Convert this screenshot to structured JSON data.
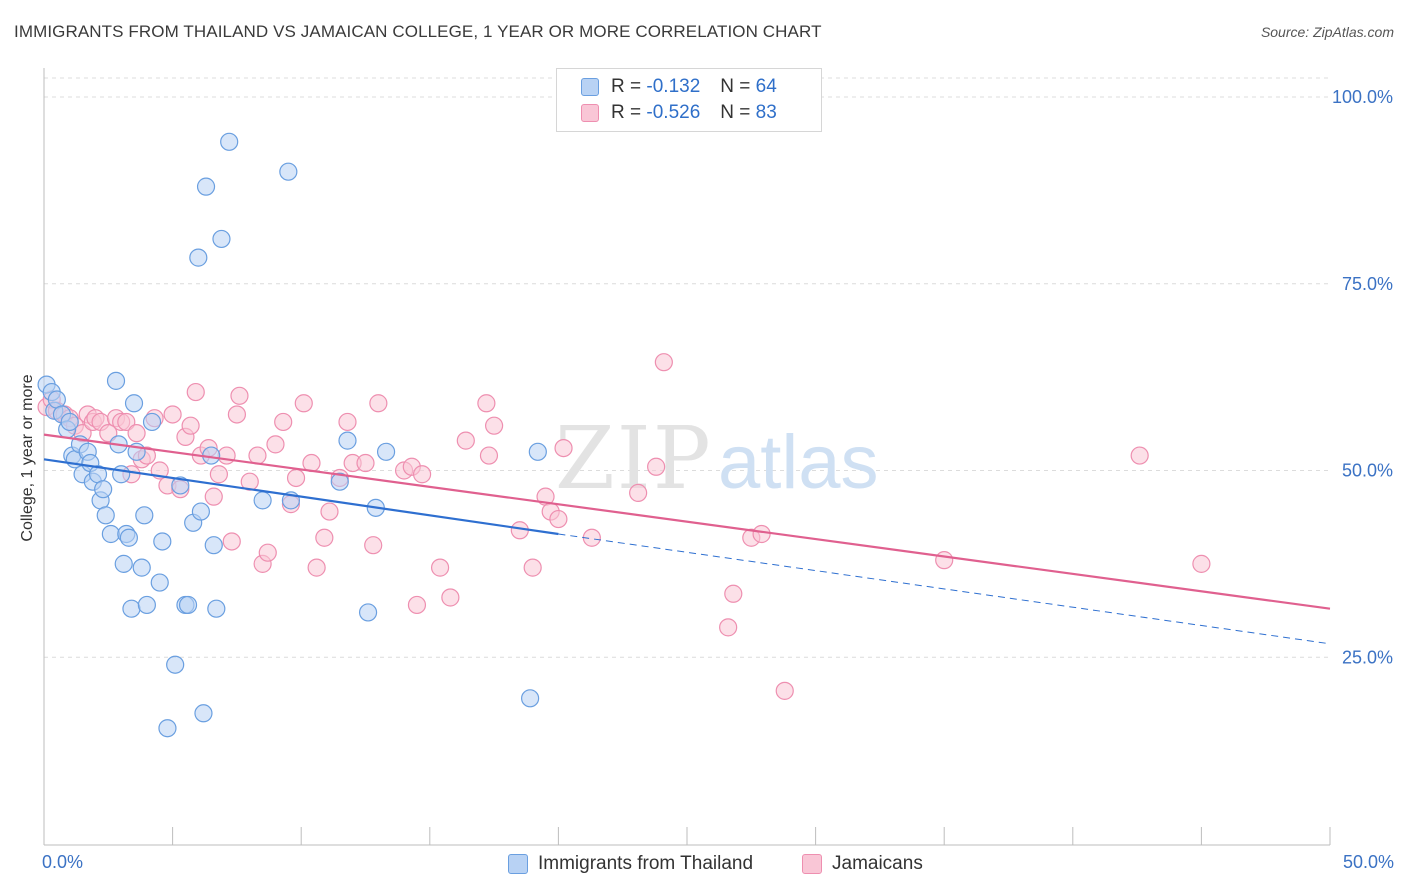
{
  "title": "IMMIGRANTS FROM THAILAND VS JAMAICAN COLLEGE, 1 YEAR OR MORE CORRELATION CHART",
  "source": "Source: ZipAtlas.com",
  "watermark": {
    "zip": "ZIP",
    "atlas": "atlas"
  },
  "legend": {
    "rows": [
      {
        "r_label": "R =",
        "r_value": "-0.132",
        "n_label": "N =",
        "n_value": "64"
      },
      {
        "r_label": "R =",
        "r_value": "-0.526",
        "n_label": "N =",
        "n_value": "83"
      }
    ]
  },
  "chart_data": {
    "type": "scatter",
    "ylabel": "College, 1 year or more",
    "xlim": [
      0,
      50
    ],
    "ylim": [
      0,
      100
    ],
    "x_tick_labels": [
      "0.0%",
      "50.0%"
    ],
    "y_ticks": [
      25,
      50,
      75,
      100
    ],
    "y_tick_labels": [
      "25.0%",
      "50.0%",
      "75.0%",
      "100.0%"
    ],
    "grid": "horizontal dashed",
    "series": [
      {
        "name": "Immigrants from Thailand",
        "color": "#6a9fe0",
        "fill": "#b8d2f4",
        "trend": {
          "x": [
            0,
            20
          ],
          "y": [
            51.5,
            41.5
          ],
          "dashed_to": {
            "x": 50,
            "y": 26.8
          },
          "color": "#2e6fd0"
        },
        "points": [
          [
            0.1,
            61.5
          ],
          [
            0.3,
            60.5
          ],
          [
            0.4,
            58
          ],
          [
            0.5,
            59.5
          ],
          [
            0.7,
            57.5
          ],
          [
            0.9,
            55.5
          ],
          [
            1.0,
            56.5
          ],
          [
            1.1,
            52
          ],
          [
            1.2,
            51.5
          ],
          [
            1.4,
            53.5
          ],
          [
            1.5,
            49.5
          ],
          [
            1.7,
            52.5
          ],
          [
            1.8,
            51
          ],
          [
            1.9,
            48.5
          ],
          [
            2.1,
            49.5
          ],
          [
            2.2,
            46
          ],
          [
            2.3,
            47.5
          ],
          [
            2.4,
            44
          ],
          [
            2.6,
            41.5
          ],
          [
            2.8,
            62
          ],
          [
            2.9,
            53.5
          ],
          [
            3.0,
            49.5
          ],
          [
            3.1,
            37.5
          ],
          [
            3.2,
            41.5
          ],
          [
            3.3,
            41
          ],
          [
            3.4,
            31.5
          ],
          [
            3.5,
            59
          ],
          [
            3.6,
            52.5
          ],
          [
            3.8,
            37
          ],
          [
            3.9,
            44
          ],
          [
            4.0,
            32
          ],
          [
            4.2,
            56.5
          ],
          [
            4.5,
            35
          ],
          [
            4.6,
            40.5
          ],
          [
            4.8,
            15.5
          ],
          [
            5.1,
            24
          ],
          [
            5.3,
            48
          ],
          [
            5.5,
            32
          ],
          [
            5.6,
            32
          ],
          [
            5.8,
            43
          ],
          [
            6.0,
            78.5
          ],
          [
            6.1,
            44.5
          ],
          [
            6.2,
            17.5
          ],
          [
            6.3,
            88
          ],
          [
            6.5,
            52
          ],
          [
            6.6,
            40
          ],
          [
            6.7,
            31.5
          ],
          [
            6.9,
            81
          ],
          [
            7.2,
            94
          ],
          [
            8.5,
            46
          ],
          [
            9.5,
            90
          ],
          [
            9.6,
            46
          ],
          [
            11.5,
            48.5
          ],
          [
            11.8,
            54
          ],
          [
            12.6,
            31
          ],
          [
            12.9,
            45
          ],
          [
            13.3,
            52.5
          ],
          [
            18.9,
            19.5
          ],
          [
            19.2,
            52.5
          ]
        ]
      },
      {
        "name": "Jamaicans",
        "color": "#ee8fb0",
        "fill": "#f9c6d6",
        "trend": {
          "x": [
            0,
            50
          ],
          "y": [
            54.8,
            31.5
          ],
          "color": "#e0608f"
        },
        "points": [
          [
            0.1,
            58.5
          ],
          [
            0.3,
            59.5
          ],
          [
            0.5,
            58
          ],
          [
            0.8,
            57.5
          ],
          [
            1.0,
            57
          ],
          [
            1.2,
            56
          ],
          [
            1.5,
            55
          ],
          [
            1.7,
            57.5
          ],
          [
            1.9,
            56.5
          ],
          [
            2.0,
            57
          ],
          [
            2.2,
            56.5
          ],
          [
            2.5,
            55
          ],
          [
            2.8,
            57
          ],
          [
            3.0,
            56.5
          ],
          [
            3.2,
            56.5
          ],
          [
            3.4,
            49.5
          ],
          [
            3.6,
            55
          ],
          [
            3.8,
            51.5
          ],
          [
            4.0,
            52
          ],
          [
            4.3,
            57
          ],
          [
            4.5,
            50
          ],
          [
            4.8,
            48
          ],
          [
            5.0,
            57.5
          ],
          [
            5.3,
            47.5
          ],
          [
            5.5,
            54.5
          ],
          [
            5.7,
            56
          ],
          [
            5.9,
            60.5
          ],
          [
            6.1,
            52
          ],
          [
            6.4,
            53
          ],
          [
            6.6,
            46.5
          ],
          [
            6.8,
            49.5
          ],
          [
            7.1,
            52
          ],
          [
            7.3,
            40.5
          ],
          [
            7.5,
            57.5
          ],
          [
            7.6,
            60
          ],
          [
            8.0,
            48.5
          ],
          [
            8.3,
            52
          ],
          [
            8.5,
            37.5
          ],
          [
            8.7,
            39
          ],
          [
            9.0,
            53.5
          ],
          [
            9.3,
            56.5
          ],
          [
            9.6,
            45.5
          ],
          [
            9.8,
            49
          ],
          [
            10.1,
            59
          ],
          [
            10.4,
            51
          ],
          [
            10.6,
            37
          ],
          [
            10.9,
            41
          ],
          [
            11.1,
            44.5
          ],
          [
            11.5,
            49
          ],
          [
            11.8,
            56.5
          ],
          [
            12.0,
            51
          ],
          [
            12.5,
            51
          ],
          [
            12.8,
            40
          ],
          [
            13.0,
            59
          ],
          [
            14.0,
            50
          ],
          [
            14.3,
            50.5
          ],
          [
            14.5,
            32
          ],
          [
            14.7,
            49.5
          ],
          [
            15.4,
            37
          ],
          [
            15.8,
            33
          ],
          [
            16.4,
            54
          ],
          [
            17.2,
            59
          ],
          [
            17.5,
            56
          ],
          [
            17.3,
            52
          ],
          [
            18.5,
            42
          ],
          [
            19.0,
            37
          ],
          [
            19.5,
            46.5
          ],
          [
            19.7,
            44.5
          ],
          [
            20.0,
            43.5
          ],
          [
            20.2,
            53
          ],
          [
            21.3,
            41
          ],
          [
            23.1,
            47
          ],
          [
            23.8,
            50.5
          ],
          [
            24.1,
            64.5
          ],
          [
            26.6,
            29
          ],
          [
            26.8,
            33.5
          ],
          [
            27.5,
            41
          ],
          [
            27.9,
            41.5
          ],
          [
            28.8,
            20.5
          ],
          [
            35.0,
            38
          ],
          [
            42.6,
            52
          ],
          [
            45.0,
            37.5
          ]
        ]
      }
    ]
  }
}
